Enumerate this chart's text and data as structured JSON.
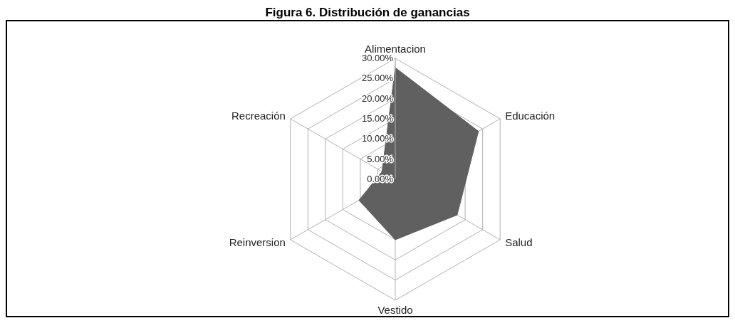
{
  "chart_data": {
    "type": "radar",
    "title": "Figura 6. Distribución de ganancias",
    "categories": [
      "Alimentacion",
      "Educación",
      "Salud",
      "Vestido",
      "Reinversion",
      "Recreación"
    ],
    "series": [
      {
        "color": "#606060",
        "values": [
          27.7,
          23.8,
          17.7,
          15,
          10.4,
          3.8
        ]
      }
    ],
    "ylim": [
      0,
      30
    ],
    "yticks": [
      {
        "value": 0,
        "label": "0.00%"
      },
      {
        "value": 5,
        "label": "5.00%"
      },
      {
        "value": 10,
        "label": "10.00%"
      },
      {
        "value": 15,
        "label": "15.00%"
      },
      {
        "value": 20,
        "label": "20.00%"
      },
      {
        "value": 25,
        "label": "25.00%"
      },
      {
        "value": 30,
        "label": "30.00%"
      }
    ],
    "grid": true
  }
}
